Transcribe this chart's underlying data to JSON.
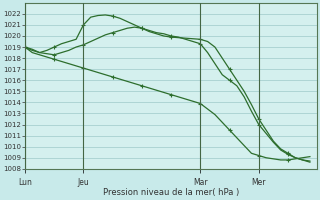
{
  "xlabel": "Pression niveau de la mer( hPa )",
  "ylim": [
    1008,
    1023
  ],
  "yticks": [
    1008,
    1009,
    1010,
    1011,
    1012,
    1013,
    1014,
    1015,
    1016,
    1017,
    1018,
    1019,
    1020,
    1021,
    1022
  ],
  "background_color": "#c8eaea",
  "plot_bg_color": "#d4f0ee",
  "line_color": "#2d6e2d",
  "markersize": 2.2,
  "linewidth": 0.9,
  "xtick_labels": [
    "Lun",
    "Jeu",
    "Mar",
    "Mer"
  ],
  "xtick_positions": [
    0,
    8,
    24,
    32
  ],
  "vline_positions": [
    0,
    8,
    24,
    32
  ],
  "xlim": [
    0,
    40
  ],
  "series1_x": [
    0,
    1,
    2,
    3,
    4,
    5,
    6,
    7,
    8,
    9,
    10,
    11,
    12,
    13,
    14,
    15,
    16,
    17,
    18,
    19,
    20,
    21,
    22,
    23,
    24,
    25,
    26,
    27,
    28,
    29,
    30,
    31,
    32,
    33,
    34,
    35,
    36,
    37,
    38,
    39
  ],
  "series1": [
    1019.0,
    1018.5,
    1018.3,
    1018.1,
    1017.9,
    1017.7,
    1017.5,
    1017.3,
    1017.1,
    1016.9,
    1016.7,
    1016.5,
    1016.3,
    1016.1,
    1015.9,
    1015.7,
    1015.5,
    1015.3,
    1015.1,
    1014.9,
    1014.7,
    1014.5,
    1014.3,
    1014.1,
    1013.9,
    1013.4,
    1012.9,
    1012.2,
    1011.5,
    1010.8,
    1010.1,
    1009.4,
    1009.2,
    1009.0,
    1008.9,
    1008.8,
    1008.8,
    1008.9,
    1009.0,
    1009.1
  ],
  "series2_x": [
    0,
    1,
    2,
    3,
    4,
    5,
    6,
    7,
    8,
    9,
    10,
    11,
    12,
    13,
    14,
    15,
    16,
    17,
    18,
    19,
    20,
    21,
    22,
    23,
    24,
    25,
    26,
    27,
    28,
    29,
    30,
    31,
    32,
    33,
    34,
    35,
    36,
    37,
    38,
    39
  ],
  "series2": [
    1019.0,
    1018.8,
    1018.5,
    1018.7,
    1019.0,
    1019.3,
    1019.5,
    1019.7,
    1021.0,
    1021.7,
    1021.85,
    1021.9,
    1021.8,
    1021.6,
    1021.3,
    1021.0,
    1020.7,
    1020.4,
    1020.2,
    1020.0,
    1019.9,
    1019.85,
    1019.8,
    1019.75,
    1019.7,
    1019.5,
    1019.0,
    1018.0,
    1017.0,
    1016.0,
    1015.0,
    1013.8,
    1012.5,
    1011.5,
    1010.5,
    1009.8,
    1009.4,
    1009.0,
    1008.8,
    1008.6
  ],
  "series3_x": [
    0,
    1,
    2,
    3,
    4,
    5,
    6,
    7,
    8,
    9,
    10,
    11,
    12,
    13,
    14,
    15,
    16,
    17,
    18,
    19,
    20,
    21,
    22,
    23,
    24,
    25,
    26,
    27,
    28,
    29,
    30,
    31,
    32,
    33,
    34,
    35,
    36,
    37,
    38,
    39
  ],
  "series3": [
    1019.0,
    1018.7,
    1018.5,
    1018.4,
    1018.3,
    1018.5,
    1018.7,
    1019.0,
    1019.2,
    1019.5,
    1019.8,
    1020.1,
    1020.3,
    1020.5,
    1020.7,
    1020.8,
    1020.7,
    1020.5,
    1020.3,
    1020.2,
    1020.0,
    1019.9,
    1019.7,
    1019.5,
    1019.3,
    1018.5,
    1017.5,
    1016.5,
    1016.0,
    1015.5,
    1014.5,
    1013.2,
    1012.0,
    1011.2,
    1010.4,
    1009.7,
    1009.3,
    1009.0,
    1008.8,
    1008.7
  ]
}
